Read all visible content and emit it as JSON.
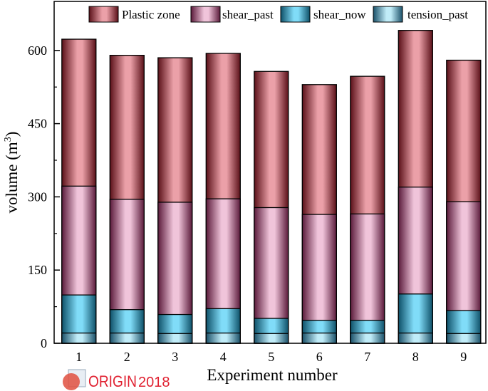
{
  "chart_data": {
    "type": "bar",
    "layout": "overlapping",
    "categories": [
      "1",
      "2",
      "3",
      "4",
      "5",
      "6",
      "7",
      "8",
      "9"
    ],
    "series": [
      {
        "name": "Plastic zone",
        "values": [
          623,
          590,
          585,
          594,
          557,
          530,
          547,
          641,
          580
        ],
        "color_light": "#eba0a8",
        "color_dark": "#5a1018"
      },
      {
        "name": "shear_past",
        "values": [
          322,
          295,
          289,
          296,
          278,
          264,
          265,
          320,
          290
        ],
        "color_light": "#f0c4da",
        "color_dark": "#5a1a3a"
      },
      {
        "name": "shear_now",
        "values": [
          99,
          69,
          59,
          71,
          51,
          47,
          47,
          101,
          67
        ],
        "color_light": "#80dcf8",
        "color_dark": "#0e5068"
      },
      {
        "name": "tension_past",
        "values": [
          21,
          21,
          20,
          21,
          20,
          21,
          21,
          21,
          20
        ],
        "color_light": "#c0ecf8",
        "color_dark": "#1a5068"
      }
    ],
    "xlabel": "Experiment number",
    "ylabel": "volume (m",
    "ylabel_sup": "3",
    "ylabel_close": ")",
    "ylim": [
      0,
      660
    ],
    "yticks": [
      0,
      150,
      300,
      450,
      600
    ],
    "grid": false,
    "legend_position": "top"
  },
  "watermark": {
    "text": "ORIGIN",
    "version": "2018"
  }
}
